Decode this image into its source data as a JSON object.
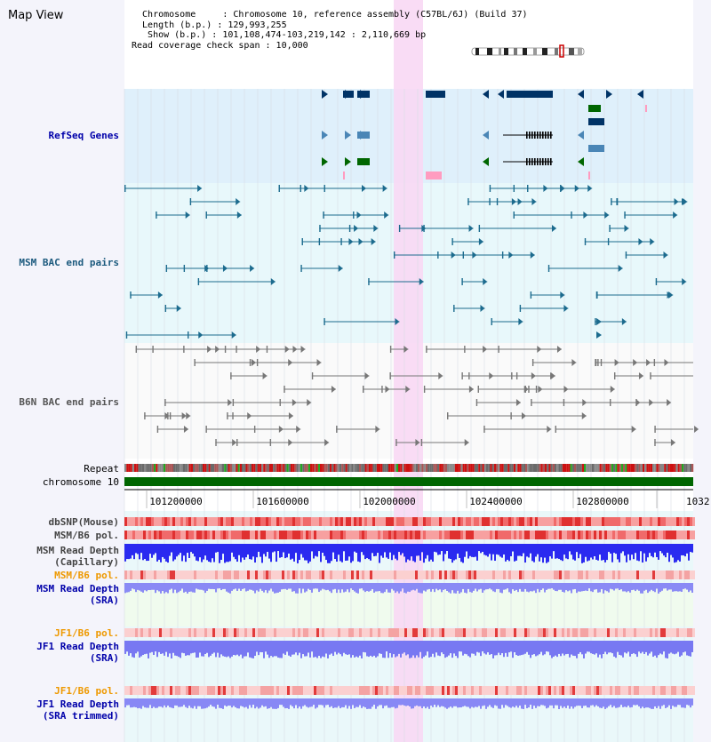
{
  "title": "Map View",
  "info": {
    "line1": "  Chromosome     : Chromosome 10, reference assembly (C57BL/6J) (Build 37)",
    "line2": "  Length (b.p.) : 129,993,255",
    "line3": "   Show (b.p.) : 101,108,474-103,219,142 : 2,110,669 bp",
    "line4": "Read coverage check span : 10,000"
  },
  "tracks": {
    "refseq": "RefSeq Genes",
    "msm_bac": "MSM BAC end pairs",
    "b6n_bac": "B6N BAC end pairs",
    "repeat": "Repeat",
    "chromosome": "chromosome 10",
    "dbsnp": "dbSNP(Mouse)",
    "msm_b6_pol_1": "MSM/B6 pol.",
    "msm_depth_cap_1": "MSM Read Depth",
    "msm_depth_cap_2": "(Capillary)",
    "msm_b6_pol_2": "MSM/B6 pol.",
    "msm_depth_sra_1": "MSM Read Depth",
    "msm_depth_sra_2": "(SRA)",
    "jf1_b6_pol_1": "JF1/B6 pol.",
    "jf1_depth_sra_1": "JF1 Read Depth",
    "jf1_depth_sra_2": "(SRA)",
    "jf1_b6_pol_2": "JF1/B6 pol.",
    "jf1_depth_trim_1": "JF1 Read Depth",
    "jf1_depth_trim_2": "(SRA trimmed)"
  },
  "axis": {
    "ticks": [
      "101200000",
      "101600000",
      "102000000",
      "102400000",
      "102800000",
      "1032"
    ]
  },
  "colors": {
    "bg": "#f4f4fb",
    "refseq_bg": "#dff0fb",
    "highlight": "#f8d8f4",
    "label_blue": "#0000aa",
    "label_orange": "#ee9900",
    "label_gray": "#444444",
    "refseq_navy": "#003366",
    "refseq_steel": "#4a86b6",
    "refseq_green": "#006600",
    "refseq_pink": "#ff9cc0",
    "msm_bac": "#1c6b8e",
    "b6n_bac": "#777777",
    "chromosome": "#006600",
    "depth_blue": "#2222ee",
    "depth_light": "#8888ff"
  }
}
